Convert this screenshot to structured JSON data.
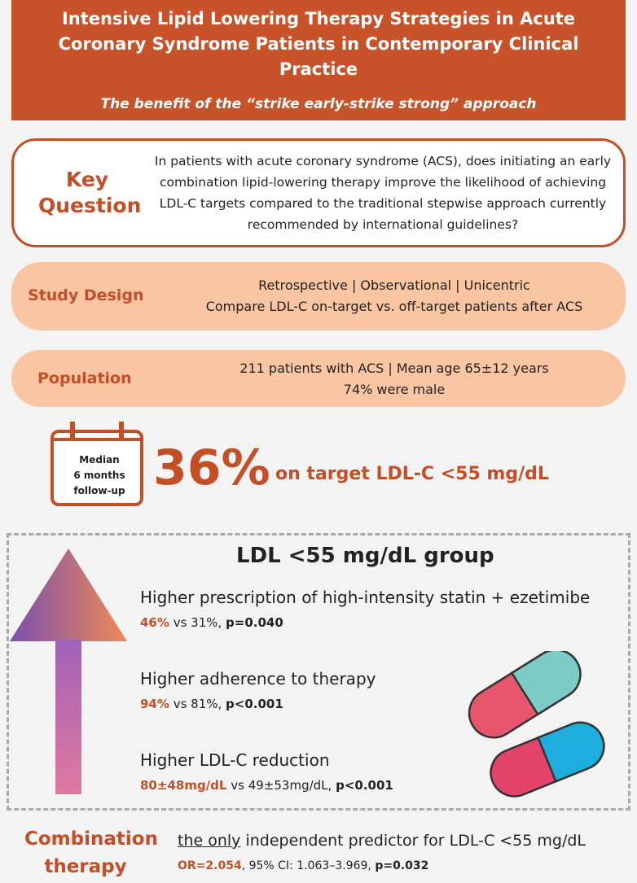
{
  "header": {
    "title": "Intensive Lipid Lowering Therapy Strategies in Acute Coronary Syndrome Patients in Contemporary Clinical Practice",
    "subtitle": "The benefit of the “strike early-strike strong” approach"
  },
  "key_question": {
    "label": "Key Question",
    "text": "In patients with acute coronary syndrome (ACS), does initiating an early combination lipid-lowering therapy improve the likelihood of achieving LDL-C targets compared to the traditional stepwise approach currently recommended by international guidelines?"
  },
  "study_design": {
    "label": "Study Design",
    "lines": [
      "Retrospective | Observational | Unicentric",
      "Compare LDL-C on-target vs. off-target patients after ACS"
    ]
  },
  "population": {
    "label": "Population",
    "lines": [
      "211 patients with ACS | Mean age 65±12 years",
      "74% were male"
    ]
  },
  "follow_up": {
    "label": [
      "Median",
      "6 months",
      "follow-up"
    ],
    "percent": "36%",
    "text": "on target LDL-C <55 mg/dL"
  },
  "group": {
    "title": "LDL <55 mg/dL group",
    "findings": [
      {
        "heading": "Higher prescription of high-intensity statin + ezetimibe",
        "highlight": "46%",
        "comparison": "vs 31%,",
        "p": "p=0.040"
      },
      {
        "heading": "Higher adherence to therapy",
        "highlight": "94%",
        "comparison": "vs 81%,",
        "p": "p<0.001"
      },
      {
        "heading": "Higher LDL-C reduction",
        "highlight": "80±48mg/dL",
        "comparison": "vs 49±53mg/dL,",
        "p": "p<0.001"
      }
    ]
  },
  "predictor": {
    "label": "Combination therapy",
    "underlined": "the only",
    "text": "independent predictor for LDL-C <55 mg/dL",
    "or": "OR=2.054",
    "ci": ", 95% CI: 1.063–3.969,",
    "p": "p=0.032"
  }
}
